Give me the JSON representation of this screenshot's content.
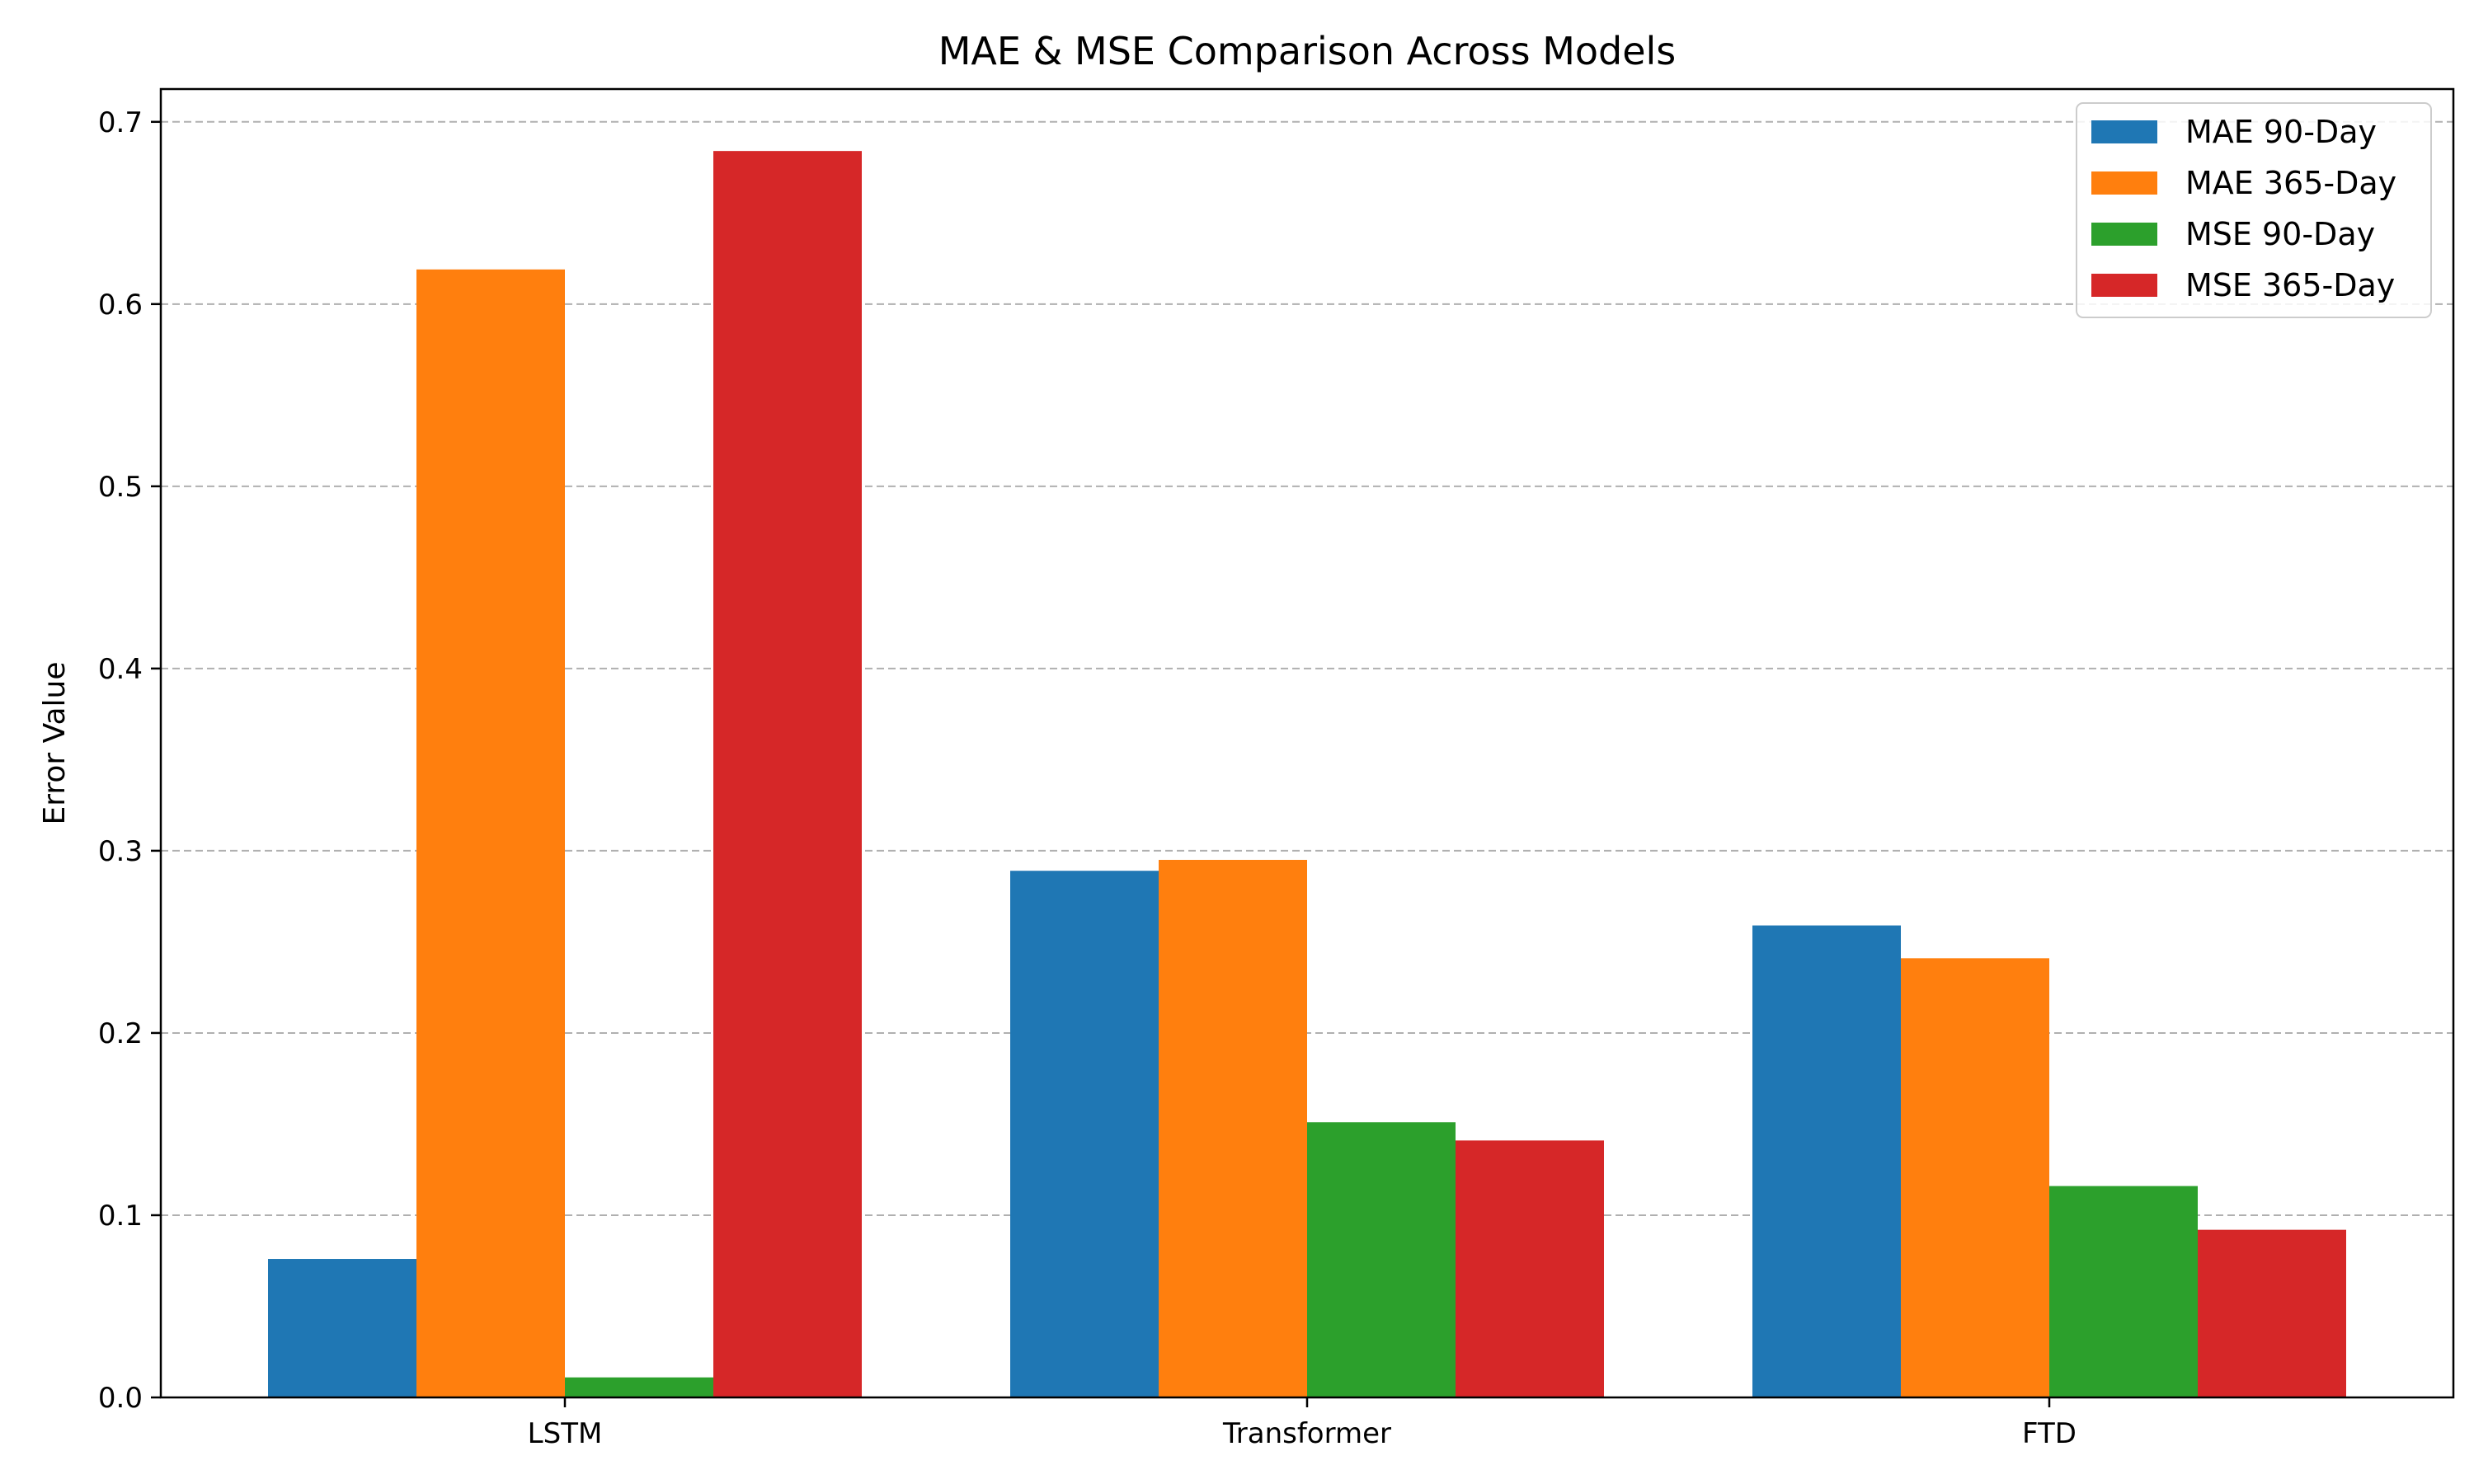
{
  "chart_data": {
    "type": "bar",
    "title": "MAE & MSE Comparison Across Models",
    "xlabel": "",
    "ylabel": "Error Value",
    "categories": [
      "LSTM",
      "Transformer",
      "FTD"
    ],
    "series": [
      {
        "name": "MAE 90-Day",
        "color": "#1f77b4",
        "values": [
          0.076,
          0.289,
          0.259
        ]
      },
      {
        "name": "MAE 365-Day",
        "color": "#ff7f0e",
        "values": [
          0.619,
          0.295,
          0.241
        ]
      },
      {
        "name": "MSE 90-Day",
        "color": "#2ca02c",
        "values": [
          0.011,
          0.151,
          0.116
        ]
      },
      {
        "name": "MSE 365-Day",
        "color": "#d62728",
        "values": [
          0.684,
          0.141,
          0.092
        ]
      }
    ],
    "ylim": [
      0,
      0.718
    ],
    "yticks": [
      "0.0",
      "0.1",
      "0.2",
      "0.3",
      "0.4",
      "0.5",
      "0.6",
      "0.7"
    ],
    "grid": "y-dashed",
    "legend_position": "top-right"
  }
}
